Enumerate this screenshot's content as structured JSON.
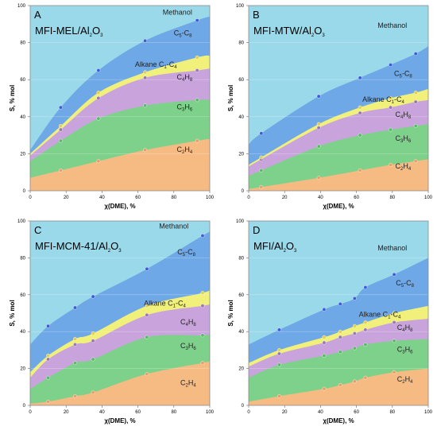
{
  "colors": {
    "methanol": "#9ad9ea",
    "c5c8": "#6fa8e6",
    "alkane": "#f0f07a",
    "c4h8": "#c9a4dc",
    "c3h6": "#7dd18a",
    "c2h4": "#f6bb83",
    "marker": "#3b5bdb"
  },
  "chart_data": [
    {
      "type": "area",
      "letter": "A",
      "title": {
        "main": "MFI-MEL/Al",
        "sub1": "2",
        "mid": "O",
        "sub2": "3"
      },
      "xlabel": "χ(DME), %",
      "ylabel": "S, % mol",
      "xlim": [
        0,
        100
      ],
      "ylim": [
        0,
        100
      ],
      "xticks": [
        "0",
        "20",
        "40",
        "60",
        "80",
        "100"
      ],
      "yticks": [
        "0",
        "20",
        "40",
        "60",
        "80",
        "100"
      ],
      "band_labels": [
        {
          "name": "Methanol",
          "base": "Methanol",
          "sub": "",
          "tail": "",
          "x": 82,
          "y": 95
        },
        {
          "name": "C5-C8",
          "base": "C",
          "sub": "5",
          "tail": "-C",
          "sub2": "8",
          "x": 85,
          "y": 84
        },
        {
          "name": "Alkane C1-C4",
          "base": "Alkane C",
          "sub": "1",
          "tail": "-C",
          "sub2": "4",
          "x": 70,
          "y": 67
        },
        {
          "name": "C4H8",
          "base": "C",
          "sub": "4",
          "tail": "H",
          "sub2": "8",
          "x": 86,
          "y": 60
        },
        {
          "name": "C3H6",
          "base": "C",
          "sub": "3",
          "tail": "H",
          "sub2": "6",
          "x": 86,
          "y": 44
        },
        {
          "name": "C2H4",
          "base": "C",
          "sub": "2",
          "tail": "H",
          "sub2": "4",
          "x": 86,
          "y": 21
        }
      ],
      "x": [
        0,
        17,
        38,
        64,
        93,
        100
      ],
      "series": [
        {
          "name": "C2H4",
          "cumulative": [
            7,
            11,
            16,
            22,
            27,
            28
          ]
        },
        {
          "name": "C3H6",
          "cumulative": [
            16,
            27,
            39,
            46,
            49,
            49
          ]
        },
        {
          "name": "C4H8",
          "cumulative": [
            19,
            33,
            50,
            61,
            65,
            66
          ]
        },
        {
          "name": "Alkane C1-C4",
          "cumulative": [
            20,
            35,
            53,
            64,
            72,
            73
          ]
        },
        {
          "name": "C5-C8",
          "cumulative": [
            22,
            45,
            65,
            81,
            92,
            94
          ]
        },
        {
          "name": "Methanol",
          "cumulative": [
            100,
            100,
            100,
            100,
            100,
            100
          ]
        }
      ]
    },
    {
      "type": "area",
      "letter": "B",
      "title": {
        "main": "MFI-MTW/Al",
        "sub1": "2",
        "mid": "O",
        "sub2": "3"
      },
      "xlabel": "χ(DME), %",
      "ylabel": "S, % mol",
      "xlim": [
        0,
        100
      ],
      "ylim": [
        0,
        100
      ],
      "xticks": [
        "0",
        "20",
        "40",
        "60",
        "80",
        "100"
      ],
      "yticks": [
        "0",
        "20",
        "40",
        "60",
        "80",
        "100"
      ],
      "band_labels": [
        {
          "name": "Methanol",
          "base": "Methanol",
          "sub": "",
          "tail": "",
          "x": 80,
          "y": 88
        },
        {
          "name": "C5-C8",
          "base": "C",
          "sub": "5",
          "tail": "-C",
          "sub2": "8",
          "x": 86,
          "y": 62
        },
        {
          "name": "Alkane C1-C4",
          "base": "Alkane C",
          "sub": "1",
          "tail": "-C",
          "sub2": "4",
          "x": 75,
          "y": 48
        },
        {
          "name": "C4H8",
          "base": "C",
          "sub": "4",
          "tail": "H",
          "sub2": "8",
          "x": 86,
          "y": 40
        },
        {
          "name": "C3H6",
          "base": "C",
          "sub": "3",
          "tail": "H",
          "sub2": "6",
          "x": 86,
          "y": 27
        },
        {
          "name": "C2H4",
          "base": "C",
          "sub": "2",
          "tail": "H",
          "sub2": "4",
          "x": 86,
          "y": 12
        }
      ],
      "x": [
        0,
        7,
        39,
        62,
        79,
        93,
        100
      ],
      "series": [
        {
          "name": "C2H4",
          "cumulative": [
            1,
            2,
            7,
            11,
            14,
            16,
            17
          ]
        },
        {
          "name": "C3H6",
          "cumulative": [
            8,
            11,
            24,
            30,
            33,
            35,
            36
          ]
        },
        {
          "name": "C4H8",
          "cumulative": [
            13,
            17,
            34,
            42,
            45,
            48,
            49
          ]
        },
        {
          "name": "Alkane C1-C4",
          "cumulative": [
            14,
            18,
            36,
            45,
            50,
            53,
            55
          ]
        },
        {
          "name": "C5-C8",
          "cumulative": [
            25,
            31,
            51,
            61,
            68,
            74,
            78
          ]
        },
        {
          "name": "Methanol",
          "cumulative": [
            100,
            100,
            100,
            100,
            100,
            100,
            100
          ]
        }
      ]
    },
    {
      "type": "area",
      "letter": "C",
      "title": {
        "main": "MFI-MCM-41/Al",
        "sub1": "2",
        "mid": "O",
        "sub2": "3"
      },
      "xlabel": "χ(DME), %",
      "ylabel": "S, % mol",
      "xlim": [
        0,
        100
      ],
      "ylim": [
        0,
        100
      ],
      "xticks": [
        "0",
        "20",
        "40",
        "60",
        "80",
        "100"
      ],
      "yticks": [
        "0",
        "20",
        "40",
        "60",
        "80",
        "100"
      ],
      "band_labels": [
        {
          "name": "Methanol",
          "base": "Methanol",
          "sub": "",
          "tail": "",
          "x": 80,
          "y": 96
        },
        {
          "name": "C5-C8",
          "base": "C",
          "sub": "5",
          "tail": "-C",
          "sub2": "8",
          "x": 87,
          "y": 82
        },
        {
          "name": "Alkane C1-C4",
          "base": "Alkane C",
          "sub": "1",
          "tail": "-C",
          "sub2": "4",
          "x": 75,
          "y": 54
        },
        {
          "name": "C4H8",
          "base": "C",
          "sub": "4",
          "tail": "H",
          "sub2": "8",
          "x": 88,
          "y": 44
        },
        {
          "name": "C3H6",
          "base": "C",
          "sub": "3",
          "tail": "H",
          "sub2": "6",
          "x": 88,
          "y": 31
        },
        {
          "name": "C2H4",
          "base": "C",
          "sub": "2",
          "tail": "H",
          "sub2": "4",
          "x": 88,
          "y": 11
        }
      ],
      "x": [
        0,
        10,
        25,
        35,
        65,
        96,
        100
      ],
      "series": [
        {
          "name": "C2H4",
          "cumulative": [
            1,
            2,
            5,
            7,
            17,
            23,
            24
          ]
        },
        {
          "name": "C3H6",
          "cumulative": [
            9,
            15,
            23,
            25,
            37,
            38,
            39
          ]
        },
        {
          "name": "C4H8",
          "cumulative": [
            15,
            25,
            33,
            35,
            49,
            54,
            55
          ]
        },
        {
          "name": "Alkane C1-C4",
          "cumulative": [
            18,
            27,
            36,
            39,
            54,
            61,
            63
          ]
        },
        {
          "name": "C5-C8",
          "cumulative": [
            33,
            43,
            53,
            59,
            74,
            92,
            94
          ]
        },
        {
          "name": "Methanol",
          "cumulative": [
            100,
            100,
            100,
            100,
            100,
            100,
            100
          ]
        }
      ]
    },
    {
      "type": "area",
      "letter": "D",
      "title": {
        "main": "MFI/Al",
        "sub1": "2",
        "mid": "O",
        "sub2": "3"
      },
      "xlabel": "χ(DME), %",
      "ylabel": "S, % mol",
      "xlim": [
        0,
        100
      ],
      "ylim": [
        0,
        100
      ],
      "xticks": [
        "0",
        "20",
        "40",
        "60",
        "80",
        "100"
      ],
      "yticks": [
        "0",
        "20",
        "40",
        "60",
        "80",
        "100"
      ],
      "band_labels": [
        {
          "name": "Methanol",
          "base": "Methanol",
          "sub": "",
          "tail": "",
          "x": 80,
          "y": 84
        },
        {
          "name": "C5-C8",
          "base": "C",
          "sub": "5",
          "tail": "-C",
          "sub2": "8",
          "x": 87,
          "y": 65
        },
        {
          "name": "Alkane C1-C4",
          "base": "Alkane C",
          "sub": "1",
          "tail": "-C",
          "sub2": "4",
          "x": 73,
          "y": 48
        },
        {
          "name": "C4H8",
          "base": "C",
          "sub": "4",
          "tail": "H",
          "sub2": "8",
          "x": 87,
          "y": 41
        },
        {
          "name": "C3H6",
          "base": "C",
          "sub": "3",
          "tail": "H",
          "sub2": "6",
          "x": 87,
          "y": 29
        },
        {
          "name": "C2H4",
          "base": "C",
          "sub": "2",
          "tail": "H",
          "sub2": "4",
          "x": 87,
          "y": 13
        }
      ],
      "x": [
        0,
        17,
        42,
        51,
        59,
        65,
        81,
        100
      ],
      "series": [
        {
          "name": "C2H4",
          "cumulative": [
            2,
            5,
            9,
            11,
            13,
            15,
            18,
            20
          ]
        },
        {
          "name": "C3H6",
          "cumulative": [
            15,
            22,
            27,
            29,
            31,
            33,
            35,
            36
          ]
        },
        {
          "name": "C4H8",
          "cumulative": [
            21,
            28,
            34,
            37,
            39,
            41,
            45,
            47
          ]
        },
        {
          "name": "Alkane C1-C4",
          "cumulative": [
            23,
            30,
            37,
            40,
            43,
            45,
            50,
            54
          ]
        },
        {
          "name": "C5-C8",
          "cumulative": [
            33,
            41,
            52,
            55,
            58,
            64,
            71,
            80
          ]
        },
        {
          "name": "Methanol",
          "cumulative": [
            100,
            100,
            100,
            100,
            100,
            100,
            100,
            100
          ]
        }
      ]
    }
  ]
}
